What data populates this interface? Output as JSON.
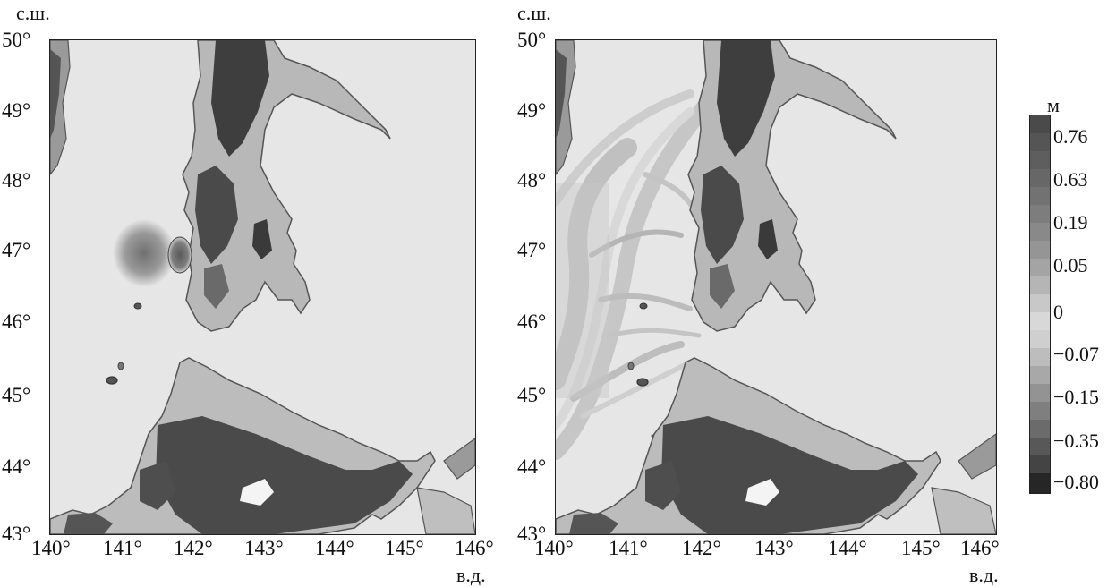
{
  "axis_labels": {
    "lat_unit": "с.ш.",
    "lon_unit": "в.д.",
    "lat_ticks": [
      "50°",
      "49°",
      "48°",
      "47°",
      "46°",
      "45°",
      "44°",
      "43°"
    ],
    "lon_ticks": [
      "140°",
      "141°",
      "142°",
      "143°",
      "144°",
      "145°",
      "146°"
    ]
  },
  "colorbar": {
    "unit": "м",
    "ticks": [
      "0.76",
      "0.63",
      "0.19",
      "0.05",
      "0",
      "−0.07",
      "−0.15",
      "−0.35",
      "−0.80"
    ]
  },
  "colors": {
    "sea": "#e6e6e6",
    "land": "#bfbfbf",
    "mountains": "#4a4a4a",
    "coastline": "#555555"
  }
}
